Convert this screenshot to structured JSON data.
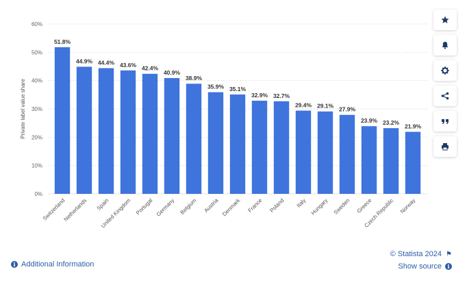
{
  "chart_data": {
    "type": "bar",
    "ylabel": "Private label value share",
    "xlabel": "",
    "ylim": [
      0,
      60
    ],
    "yticks": [
      "0%",
      "10%",
      "20%",
      "30%",
      "40%",
      "50%",
      "60%"
    ],
    "grid": true,
    "bar_color": "#3f74dd",
    "categories": [
      "Switzerland",
      "Netherlands",
      "Spain",
      "United Kingdom",
      "Portugal",
      "Germany",
      "Belgium",
      "Austria",
      "Denmark",
      "France",
      "Poland",
      "Italy",
      "Hungary",
      "Sweden",
      "Greece",
      "Czech Republic",
      "Norway"
    ],
    "values": [
      51.8,
      44.9,
      44.4,
      43.6,
      42.4,
      40.9,
      38.9,
      35.9,
      35.1,
      32.9,
      32.7,
      29.4,
      29.1,
      27.9,
      23.9,
      23.2,
      21.9
    ],
    "value_labels": [
      "51.8%",
      "44.9%",
      "44.4%",
      "43.6%",
      "42.4%",
      "40.9%",
      "38.9%",
      "35.9%",
      "35.1%",
      "32.9%",
      "32.7%",
      "29.4%",
      "29.1%",
      "27.9%",
      "23.9%",
      "23.2%",
      "21.9%"
    ]
  },
  "sidebar": {
    "buttons": [
      {
        "name": "favorite-button",
        "icon": "star-icon"
      },
      {
        "name": "notification-button",
        "icon": "bell-icon"
      },
      {
        "name": "settings-button",
        "icon": "gear-icon"
      },
      {
        "name": "share-button",
        "icon": "share-icon"
      },
      {
        "name": "cite-button",
        "icon": "quote-icon"
      },
      {
        "name": "print-button",
        "icon": "printer-icon"
      }
    ]
  },
  "footer": {
    "additional_info": "Additional Information",
    "copyright": "© Statista 2024",
    "show_source": "Show source"
  },
  "colors": {
    "link": "#2b5ca8",
    "icon": "#1f3a63",
    "grid": "#e3e3e3",
    "tick_text": "#666666"
  }
}
